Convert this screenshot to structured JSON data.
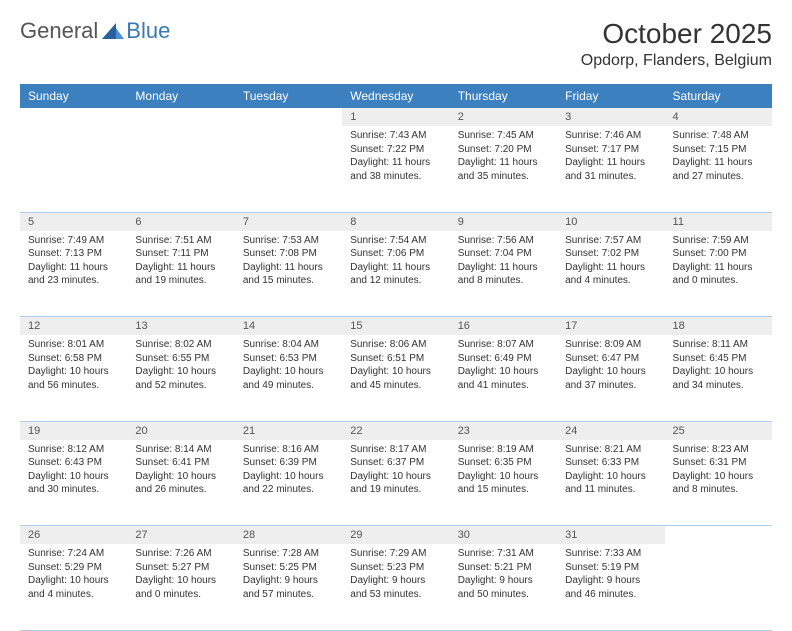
{
  "logo": {
    "text1": "General",
    "text2": "Blue",
    "icon_color": "#2a5f9e"
  },
  "title": "October 2025",
  "location": "Opdorp, Flanders, Belgium",
  "header_bg": "#3c80c0",
  "header_fg": "#ffffff",
  "daynum_bg": "#eeeeee",
  "divider_color": "#aecde8",
  "text_color": "#333333",
  "font_family": "Arial, Helvetica, sans-serif",
  "day_names": [
    "Sunday",
    "Monday",
    "Tuesday",
    "Wednesday",
    "Thursday",
    "Friday",
    "Saturday"
  ],
  "weeks": [
    [
      null,
      null,
      null,
      {
        "n": "1",
        "sunrise": "7:43 AM",
        "sunset": "7:22 PM",
        "daylight": "11 hours and 38 minutes."
      },
      {
        "n": "2",
        "sunrise": "7:45 AM",
        "sunset": "7:20 PM",
        "daylight": "11 hours and 35 minutes."
      },
      {
        "n": "3",
        "sunrise": "7:46 AM",
        "sunset": "7:17 PM",
        "daylight": "11 hours and 31 minutes."
      },
      {
        "n": "4",
        "sunrise": "7:48 AM",
        "sunset": "7:15 PM",
        "daylight": "11 hours and 27 minutes."
      }
    ],
    [
      {
        "n": "5",
        "sunrise": "7:49 AM",
        "sunset": "7:13 PM",
        "daylight": "11 hours and 23 minutes."
      },
      {
        "n": "6",
        "sunrise": "7:51 AM",
        "sunset": "7:11 PM",
        "daylight": "11 hours and 19 minutes."
      },
      {
        "n": "7",
        "sunrise": "7:53 AM",
        "sunset": "7:08 PM",
        "daylight": "11 hours and 15 minutes."
      },
      {
        "n": "8",
        "sunrise": "7:54 AM",
        "sunset": "7:06 PM",
        "daylight": "11 hours and 12 minutes."
      },
      {
        "n": "9",
        "sunrise": "7:56 AM",
        "sunset": "7:04 PM",
        "daylight": "11 hours and 8 minutes."
      },
      {
        "n": "10",
        "sunrise": "7:57 AM",
        "sunset": "7:02 PM",
        "daylight": "11 hours and 4 minutes."
      },
      {
        "n": "11",
        "sunrise": "7:59 AM",
        "sunset": "7:00 PM",
        "daylight": "11 hours and 0 minutes."
      }
    ],
    [
      {
        "n": "12",
        "sunrise": "8:01 AM",
        "sunset": "6:58 PM",
        "daylight": "10 hours and 56 minutes."
      },
      {
        "n": "13",
        "sunrise": "8:02 AM",
        "sunset": "6:55 PM",
        "daylight": "10 hours and 52 minutes."
      },
      {
        "n": "14",
        "sunrise": "8:04 AM",
        "sunset": "6:53 PM",
        "daylight": "10 hours and 49 minutes."
      },
      {
        "n": "15",
        "sunrise": "8:06 AM",
        "sunset": "6:51 PM",
        "daylight": "10 hours and 45 minutes."
      },
      {
        "n": "16",
        "sunrise": "8:07 AM",
        "sunset": "6:49 PM",
        "daylight": "10 hours and 41 minutes."
      },
      {
        "n": "17",
        "sunrise": "8:09 AM",
        "sunset": "6:47 PM",
        "daylight": "10 hours and 37 minutes."
      },
      {
        "n": "18",
        "sunrise": "8:11 AM",
        "sunset": "6:45 PM",
        "daylight": "10 hours and 34 minutes."
      }
    ],
    [
      {
        "n": "19",
        "sunrise": "8:12 AM",
        "sunset": "6:43 PM",
        "daylight": "10 hours and 30 minutes."
      },
      {
        "n": "20",
        "sunrise": "8:14 AM",
        "sunset": "6:41 PM",
        "daylight": "10 hours and 26 minutes."
      },
      {
        "n": "21",
        "sunrise": "8:16 AM",
        "sunset": "6:39 PM",
        "daylight": "10 hours and 22 minutes."
      },
      {
        "n": "22",
        "sunrise": "8:17 AM",
        "sunset": "6:37 PM",
        "daylight": "10 hours and 19 minutes."
      },
      {
        "n": "23",
        "sunrise": "8:19 AM",
        "sunset": "6:35 PM",
        "daylight": "10 hours and 15 minutes."
      },
      {
        "n": "24",
        "sunrise": "8:21 AM",
        "sunset": "6:33 PM",
        "daylight": "10 hours and 11 minutes."
      },
      {
        "n": "25",
        "sunrise": "8:23 AM",
        "sunset": "6:31 PM",
        "daylight": "10 hours and 8 minutes."
      }
    ],
    [
      {
        "n": "26",
        "sunrise": "7:24 AM",
        "sunset": "5:29 PM",
        "daylight": "10 hours and 4 minutes."
      },
      {
        "n": "27",
        "sunrise": "7:26 AM",
        "sunset": "5:27 PM",
        "daylight": "10 hours and 0 minutes."
      },
      {
        "n": "28",
        "sunrise": "7:28 AM",
        "sunset": "5:25 PM",
        "daylight": "9 hours and 57 minutes."
      },
      {
        "n": "29",
        "sunrise": "7:29 AM",
        "sunset": "5:23 PM",
        "daylight": "9 hours and 53 minutes."
      },
      {
        "n": "30",
        "sunrise": "7:31 AM",
        "sunset": "5:21 PM",
        "daylight": "9 hours and 50 minutes."
      },
      {
        "n": "31",
        "sunrise": "7:33 AM",
        "sunset": "5:19 PM",
        "daylight": "9 hours and 46 minutes."
      },
      null
    ]
  ],
  "labels": {
    "sunrise": "Sunrise:",
    "sunset": "Sunset:",
    "daylight": "Daylight:"
  }
}
